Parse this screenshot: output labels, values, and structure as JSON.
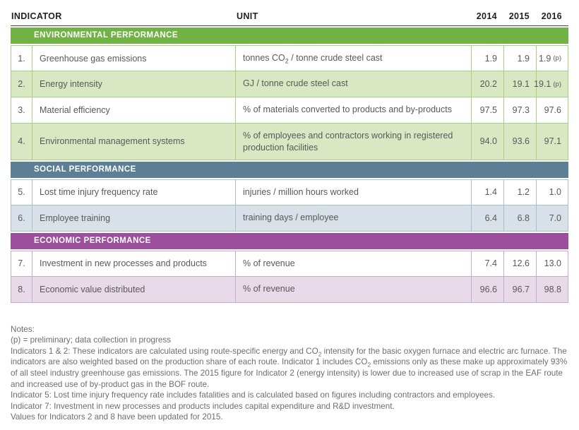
{
  "header": {
    "indicator": "INDICATOR",
    "unit": "UNIT",
    "years": [
      "2014",
      "2015",
      "2016"
    ]
  },
  "sections": [
    {
      "label": "ENVIRONMENTAL PERFORMANCE",
      "color": "#70b244",
      "rows": [
        {
          "num": "1.",
          "indicator": "Greenhouse gas emissions",
          "unit_pre": "tonnes CO",
          "unit_sub": "2",
          "unit_post": " / tonne crude steel cast",
          "v2014": "1.9",
          "v2015": "1.9",
          "v2016": "1.9",
          "flag2016": "(p)"
        },
        {
          "num": "2.",
          "indicator": "Energy intensity",
          "unit": "GJ / tonne crude steel cast",
          "v2014": "20.2",
          "v2015": "19.1",
          "v2016": "19.1",
          "flag2016": "(p)"
        },
        {
          "num": "3.",
          "indicator": "Material efficiency",
          "unit": "% of materials converted to products and by-products",
          "v2014": "97.5",
          "v2015": "97.3",
          "v2016": "97.6"
        },
        {
          "num": "4.",
          "indicator": "Environmental management systems",
          "unit": "% of employees and contractors working in registered production facilities",
          "v2014": "94.0",
          "v2015": "93.6",
          "v2016": "97.1"
        }
      ]
    },
    {
      "label": "SOCIAL PERFORMANCE",
      "color": "#5c7f96",
      "rows": [
        {
          "num": "5.",
          "indicator": "Lost time injury frequency rate",
          "unit": "injuries / million hours worked",
          "v2014": "1.4",
          "v2015": "1.2",
          "v2016": "1.0"
        },
        {
          "num": "6.",
          "indicator": "Employee training",
          "unit": "training days / employee",
          "v2014": "6.4",
          "v2015": "6.8",
          "v2016": "7.0"
        }
      ]
    },
    {
      "label": "ECONOMIC PERFORMANCE",
      "color": "#9c4f9d",
      "rows": [
        {
          "num": "7.",
          "indicator": "Investment in new processes and products",
          "unit": "% of revenue",
          "v2014": "7.4",
          "v2015": "12.6",
          "v2016": "13.0"
        },
        {
          "num": "8.",
          "indicator": "Economic value distributed",
          "unit": "% of revenue",
          "v2014": "96.6",
          "v2015": "96.7",
          "v2016": "98.8"
        }
      ]
    }
  ],
  "notes": {
    "title": "Notes:",
    "preliminary": "(p) = preliminary; data collection in progress",
    "ind12": [
      "Indicators 1 & 2: These indicators are calculated using route-specific energy and CO",
      "2",
      " intensity for the basic oxygen furnace and electric arc furnace. The indicators are also weighted based on the production share of each route. Indicator 1 includes CO",
      "2",
      " emissions only as these make up approximately 93% of all steel industry greenhouse gas emissions. The 2015 figure for Indicator 2 (energy intensity) is lower due to increased use of scrap in the EAF route and increased use of by-product gas in the BOF route."
    ],
    "ind5": "Indicator 5: Lost time injury frequency rate includes fatalities and is calculated based on figures including contractors and employees.",
    "ind7": "Indicator 7: Investment in new processes and products includes capital expenditure and R&D investment.",
    "updated": "Values for Indicators 2 and 8 have been updated for 2015."
  },
  "colors": {
    "env_band": "#70b244",
    "env_row_shaded": "#d9e8c2",
    "env_border": "#a9cf82",
    "soc_band": "#5c7f96",
    "soc_row_shaded": "#d8e1e8",
    "soc_border": "#a9bfcc",
    "eco_band": "#9c4f9d",
    "eco_row_shaded": "#e8dae9",
    "eco_border": "#c9a7ce",
    "body_text": "#58595b",
    "header_text": "#231f20",
    "notes_text": "#6d6e71"
  }
}
